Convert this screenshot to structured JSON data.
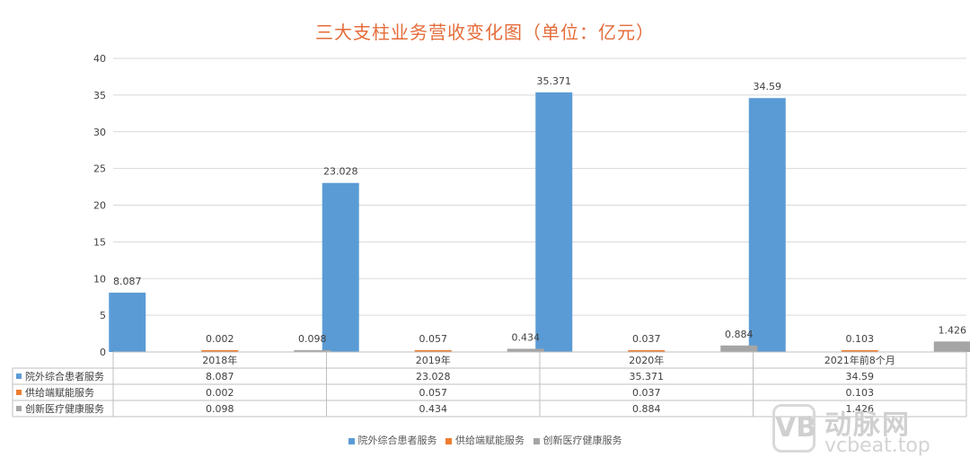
{
  "title": "三大支柱业务营收变化图（单位：亿元）",
  "watermark": {
    "logo": "VB",
    "cn": "动脉网",
    "en": "vcbeat.top"
  },
  "colors": {
    "s1": "#5B9BD5",
    "s2": "#ED7D31",
    "s3": "#A5A5A5",
    "title": "#E46C3A"
  },
  "chart_data": {
    "type": "bar",
    "title": "三大支柱业务营收变化图（单位：亿元）",
    "categories": [
      "2018年",
      "2019年",
      "2020年",
      "2021年前8个月"
    ],
    "series": [
      {
        "name": "院外综合患者服务",
        "values": [
          8.087,
          23.028,
          35.371,
          34.59
        ],
        "labels": [
          "8.087",
          "23.028",
          "35.371",
          "34.59"
        ]
      },
      {
        "name": "供给端赋能服务",
        "values": [
          0.002,
          0.057,
          0.037,
          0.103
        ],
        "labels": [
          "0.002",
          "0.057",
          "0.037",
          "0.103"
        ]
      },
      {
        "name": "创新医疗健康服务",
        "values": [
          0.098,
          0.434,
          0.884,
          1.426
        ],
        "labels": [
          "0.098",
          "0.434",
          "0.884",
          "1.426"
        ]
      }
    ],
    "ylim": [
      0,
      40
    ],
    "yticks": [
      "0",
      "5",
      "10",
      "15",
      "20",
      "25",
      "30",
      "35",
      "40"
    ],
    "grid": true,
    "data_table": true,
    "legend": "bottom"
  }
}
